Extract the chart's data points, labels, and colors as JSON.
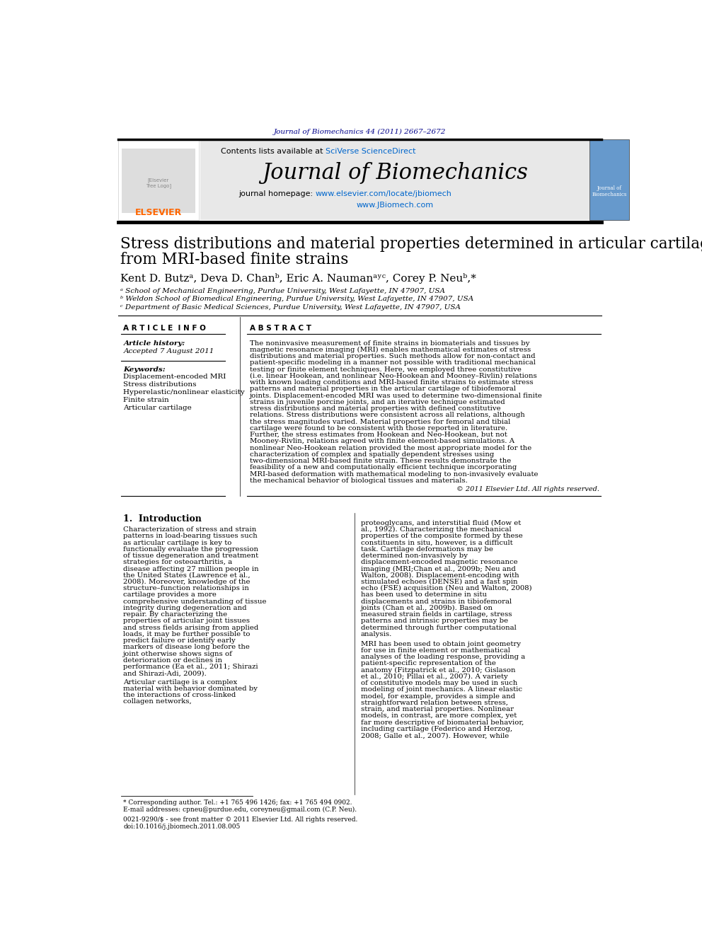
{
  "page_bg": "#ffffff",
  "top_journal_ref": "Journal of Biomechanics 44 (2011) 2667–2672",
  "top_journal_ref_color": "#00008B",
  "header_bg": "#e8e8e8",
  "contents_text": "Contents lists available at ",
  "sciverse_text": "SciVerse ScienceDirect",
  "sciverse_color": "#0066cc",
  "journal_name": "Journal of Biomechanics",
  "homepage_text": "journal homepage: ",
  "homepage_url": "www.elsevier.com/locate/jbiomech",
  "homepage_url2": "www.JBiomech.com",
  "homepage_color": "#0066cc",
  "article_title_line1": "Stress distributions and material properties determined in articular cartilage",
  "article_title_line2": "from MRI-based finite strains",
  "authors": "Kent D. Butzᵃ, Deva D. Chanᵇ, Eric A. Naumanᵃʸᶜ, Corey P. Neuᵇ,*",
  "affil_a": "ᵃ School of Mechanical Engineering, Purdue University, West Lafayette, IN 47907, USA",
  "affil_b": "ᵇ Weldon School of Biomedical Engineering, Purdue University, West Lafayette, IN 47907, USA",
  "affil_c": "ᶜ Department of Basic Medical Sciences, Purdue University, West Lafayette, IN 47907, USA",
  "section_article_info": "A R T I C L E  I N F O",
  "section_abstract": "A B S T R A C T",
  "article_history_label": "Article history:",
  "accepted_text": "Accepted 7 August 2011",
  "keywords_label": "Keywords:",
  "keywords": [
    "Displacement-encoded MRI",
    "Stress distributions",
    "Hyperelastic/nonlinear elasticity",
    "Finite strain",
    "Articular cartilage"
  ],
  "abstract_text": "The noninvasive measurement of finite strains in biomaterials and tissues by magnetic resonance imaging (MRI) enables mathematical estimates of stress distributions and material properties. Such methods allow for non-contact and patient-specific modeling in a manner not possible with traditional mechanical testing or finite element techniques. Here, we employed three constitutive (i.e. linear Hookean, and nonlinear Neo-Hookean and Mooney–Rivlin) relations with known loading conditions and MRI-based finite strains to estimate stress patterns and material properties in the articular cartilage of tibiofemoral joints. Displacement-encoded MRI was used to determine two-dimensional finite strains in juvenile porcine joints, and an iterative technique estimated stress distributions and material properties with defined constitutive relations. Stress distributions were consistent across all relations, although the stress magnitudes varied. Material properties for femoral and tibial cartilage were found to be consistent with those reported in literature. Further, the stress estimates from Hookean and Neo-Hookean, but not Mooney-Rivlin, relations agreed with finite element-based simulations. A nonlinear Neo-Hookean relation provided the most appropriate model for the characterization of complex and spatially dependent stresses using two-dimensional MRI-based finite strain. These results demonstrate the feasibility of a new and computationally efficient technique incorporating MRI-based deformation with mathematical modeling to non-invasively evaluate the mechanical behavior of biological tissues and materials.",
  "copyright_text": "© 2011 Elsevier Ltd. All rights reserved.",
  "intro_section": "1.  Introduction",
  "intro_para1": "Characterization of stress and strain patterns in load-bearing tissues such as articular cartilage is key to functionally evaluate the progression of tissue degeneration and treatment strategies for osteoarthritis, a disease affecting 27 million people in the United States (Lawrence et al., 2008). Moreover, knowledge of the structure–function relationships in cartilage provides a more comprehensive understanding of tissue integrity during degeneration and repair. By characterizing the properties of articular joint tissues and stress fields arising from applied loads, it may be further possible to predict failure or identify early markers of disease long before the joint otherwise shows signs of deterioration or declines in performance (Ea et al., 2011; Shirazi and Shirazi-Adi, 2009).",
  "intro_para2": "Articular cartilage is a complex material with behavior dominated by the interactions of cross-linked collagen networks,",
  "right_col_para1": "proteoglycans, and interstitial fluid (Mow et al., 1992). Characterizing the mechanical properties of the composite formed by these constituents in situ, however, is a difficult task. Cartilage deformations may be determined non-invasively by displacement-encoded magnetic resonance imaging (MRI;Chan et al., 2009b; Neu and Walton, 2008). Displacement-encoding with stimulated echoes (DENSE) and a fast spin echo (FSE) acquisition (Neu and Walton, 2008) has been used to determine in situ displacements and strains in tibiofemoral joints (Chan et al., 2009b). Based on measured strain fields in cartilage, stress patterns and intrinsic properties may be determined through further computational analysis.",
  "right_col_para2": "MRI has been used to obtain joint geometry for use in finite element or mathematical analyses of the loading response, providing a patient-specific representation of the anatomy (Fitzpatrick et al., 2010; Gislason et al., 2010; Pillai et al., 2007). A variety of constitutive models may be used in such modeling of joint mechanics. A linear elastic model, for example, provides a simple and straightforward relation between stress, strain, and material properties. Nonlinear models, in contrast, are more complex, yet far more descriptive of biomaterial behavior, including cartilage (Federico and Herzog, 2008; Galle et al., 2007). However, while",
  "footnote_star": "* Corresponding author. Tel.: +1 765 496 1426; fax: +1 765 494 0902.",
  "footnote_email": "E-mail addresses: cpneu@purdue.edu, coreyneu@gmail.com (C.P. Neu).",
  "footer_text1": "0021-9290/$ - see front matter © 2011 Elsevier Ltd. All rights reserved.",
  "footer_text2": "doi:10.1016/j.jbiomech.2011.08.005"
}
